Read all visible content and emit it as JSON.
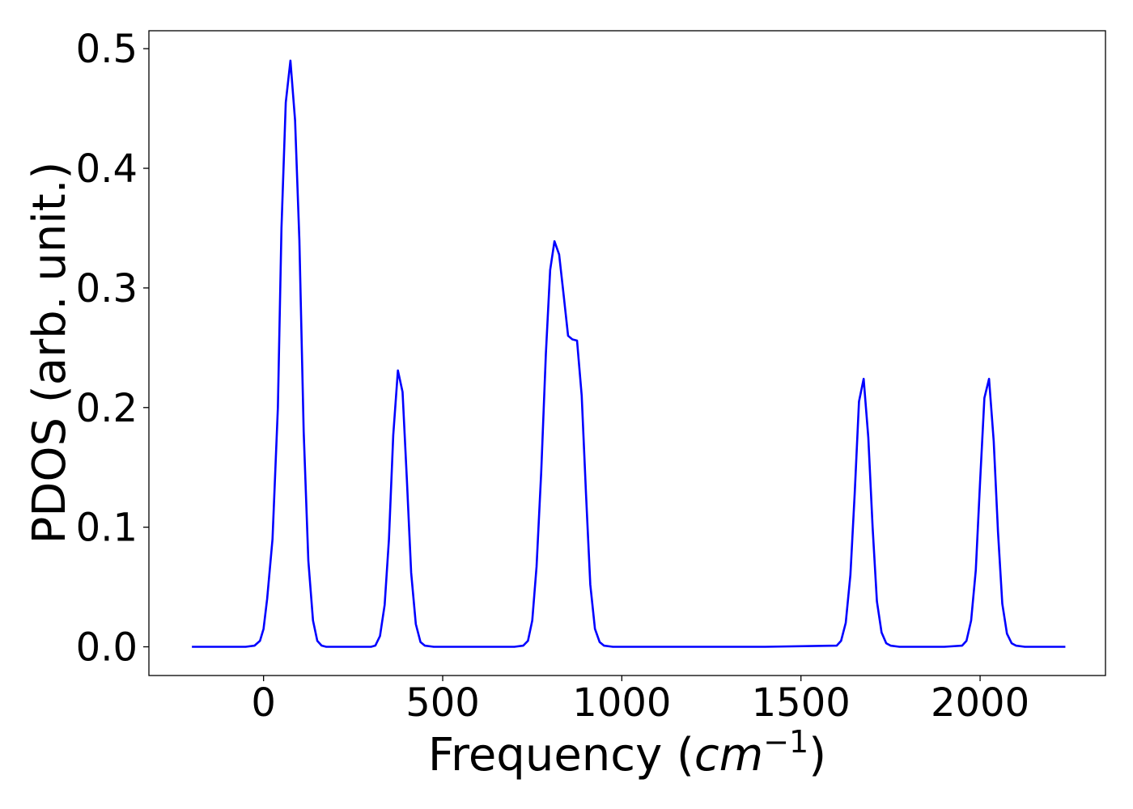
{
  "chart_data": {
    "type": "line",
    "title": "",
    "xlabel": {
      "prefix": "Frequency (",
      "unit": "cm",
      "superscript": "−1",
      "suffix": ")"
    },
    "ylabel": "PDOS (arb. unit.)",
    "xlim": [
      -320,
      2350
    ],
    "ylim": [
      -0.024,
      0.515
    ],
    "xticks": [
      0,
      500,
      1000,
      1500,
      2000
    ],
    "xtick_labels": [
      "0",
      "500",
      "1000",
      "1500",
      "2000"
    ],
    "yticks": [
      0.0,
      0.1,
      0.2,
      0.3,
      0.4,
      0.5
    ],
    "ytick_labels": [
      "0.0",
      "0.1",
      "0.2",
      "0.3",
      "0.4",
      "0.5"
    ],
    "grid": false,
    "series": [
      {
        "color": "#0000ff",
        "x": [
          -200,
          -150,
          -100,
          -50,
          -25,
          -10,
          0,
          10,
          25,
          40,
          50,
          62,
          75,
          88,
          100,
          112,
          125,
          138,
          150,
          162,
          175,
          200,
          250,
          300,
          312,
          325,
          338,
          350,
          362,
          375,
          388,
          400,
          412,
          425,
          438,
          450,
          475,
          500,
          600,
          700,
          725,
          738,
          750,
          762,
          775,
          788,
          800,
          812,
          825,
          838,
          850,
          862,
          875,
          888,
          900,
          912,
          925,
          938,
          950,
          975,
          1000,
          1200,
          1400,
          1600,
          1612,
          1625,
          1638,
          1650,
          1662,
          1675,
          1688,
          1700,
          1712,
          1725,
          1738,
          1750,
          1775,
          1800,
          1900,
          1950,
          1962,
          1975,
          1988,
          2000,
          2012,
          2025,
          2038,
          2050,
          2062,
          2075,
          2088,
          2100,
          2125,
          2150,
          2238
        ],
        "y": [
          0.0,
          0.0,
          0.0,
          0.0,
          0.001,
          0.005,
          0.015,
          0.04,
          0.09,
          0.2,
          0.35,
          0.455,
          0.49,
          0.44,
          0.34,
          0.18,
          0.072,
          0.022,
          0.005,
          0.001,
          0.0,
          0.0,
          0.0,
          0.0,
          0.001,
          0.009,
          0.035,
          0.09,
          0.177,
          0.231,
          0.213,
          0.14,
          0.062,
          0.019,
          0.004,
          0.001,
          0.0,
          0.0,
          0.0,
          0.0,
          0.001,
          0.005,
          0.022,
          0.067,
          0.146,
          0.245,
          0.315,
          0.339,
          0.328,
          0.293,
          0.26,
          0.257,
          0.256,
          0.21,
          0.128,
          0.052,
          0.015,
          0.004,
          0.001,
          0.0,
          0.0,
          0.0,
          0.0,
          0.001,
          0.005,
          0.02,
          0.06,
          0.128,
          0.205,
          0.224,
          0.175,
          0.1,
          0.038,
          0.012,
          0.003,
          0.001,
          0.0,
          0.0,
          0.0,
          0.001,
          0.005,
          0.022,
          0.064,
          0.138,
          0.208,
          0.224,
          0.172,
          0.096,
          0.036,
          0.011,
          0.003,
          0.001,
          0.0,
          0.0,
          0.0
        ]
      }
    ]
  }
}
